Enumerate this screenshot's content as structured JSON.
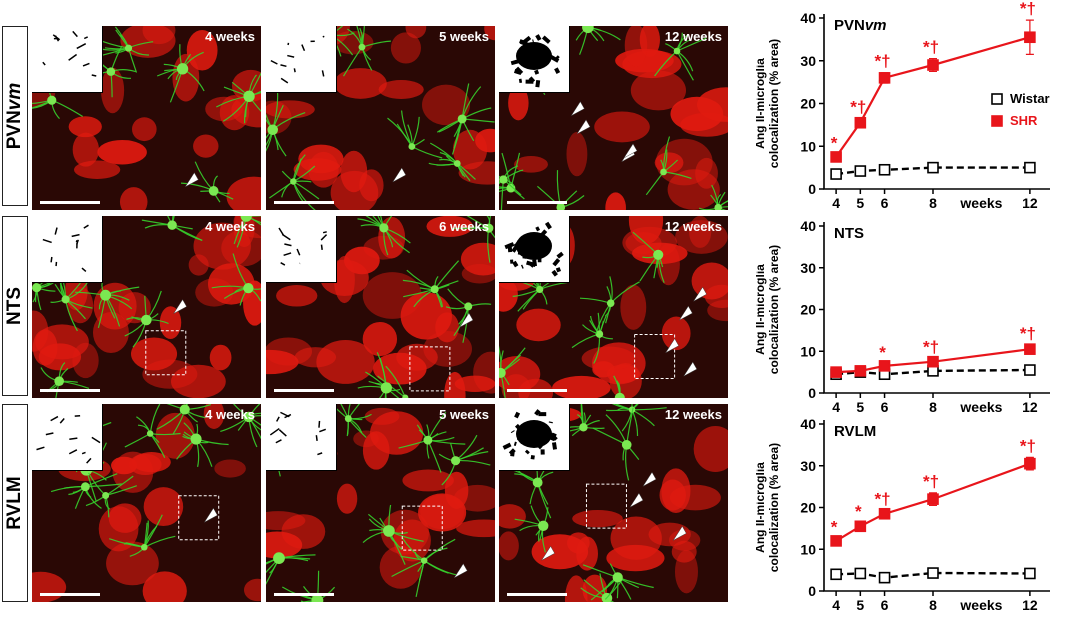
{
  "rows": [
    {
      "label_html": "PVN<i>vm</i>",
      "label": "PVNvm",
      "panels": [
        "4 weeks",
        "5 weeks",
        "12 weeks"
      ]
    },
    {
      "label": "NTS",
      "panels": [
        "4 weeks",
        "6 weeks",
        "12 weeks"
      ]
    },
    {
      "label": "RVLM",
      "panels": [
        "4 weeks",
        "5 weeks",
        "12 weeks"
      ]
    }
  ],
  "colors": {
    "shr": "#e8151b",
    "wistar": "#000000",
    "microglia": "#36d02c",
    "angii": "#e01a10"
  },
  "legend": {
    "wistar": "Wistar",
    "shr": "SHR"
  },
  "chart_data": [
    {
      "type": "line",
      "title": "PVNvm",
      "ylabel": "Ang II-microglia colocalization (% area)",
      "xlabel": "weeks",
      "x": [
        4,
        5,
        6,
        8,
        12
      ],
      "xticks": [
        "4",
        "5",
        "6",
        "8",
        "12"
      ],
      "ylim": [
        0,
        40
      ],
      "yticks": [
        0,
        10,
        20,
        30,
        40
      ],
      "series": [
        {
          "name": "Wistar",
          "values": [
            3.5,
            4.2,
            4.5,
            5.0,
            5.0
          ],
          "errors": [
            0.4,
            0.4,
            0.4,
            0.4,
            0.4
          ],
          "marker": "open-square",
          "line": "dashed"
        },
        {
          "name": "SHR",
          "values": [
            7.5,
            15.5,
            26.0,
            29.0,
            35.5
          ],
          "errors": [
            0.6,
            1.0,
            1.2,
            1.5,
            4.0
          ],
          "marker": "filled-square",
          "line": "solid"
        }
      ],
      "annotations": [
        "*",
        "*†",
        "*†",
        "*†",
        "*†"
      ],
      "legend_position": "right"
    },
    {
      "type": "line",
      "title": "NTS",
      "ylabel": "Ang II-microglia colocalization (% area)",
      "xlabel": "weeks",
      "x": [
        4,
        5,
        6,
        8,
        12
      ],
      "xticks": [
        "4",
        "5",
        "6",
        "8",
        "12"
      ],
      "ylim": [
        0,
        40
      ],
      "yticks": [
        0,
        10,
        20,
        30,
        40
      ],
      "series": [
        {
          "name": "Wistar",
          "values": [
            4.5,
            5.0,
            4.5,
            5.3,
            5.5
          ],
          "errors": [
            0.3,
            0.3,
            0.3,
            0.3,
            0.3
          ],
          "marker": "open-square",
          "line": "dashed"
        },
        {
          "name": "SHR",
          "values": [
            5.0,
            5.3,
            6.5,
            7.5,
            10.5
          ],
          "errors": [
            0.4,
            0.4,
            0.5,
            0.8,
            1.0
          ],
          "marker": "filled-square",
          "line": "solid"
        }
      ],
      "annotations": [
        "",
        "",
        "*",
        "*†",
        "*†"
      ]
    },
    {
      "type": "line",
      "title": "RVLM",
      "ylabel": "Ang II-microglia colocalization (% area)",
      "xlabel": "weeks",
      "x": [
        4,
        5,
        6,
        8,
        12
      ],
      "xticks": [
        "4",
        "5",
        "6",
        "8",
        "12"
      ],
      "ylim": [
        0,
        40
      ],
      "yticks": [
        0,
        10,
        20,
        30,
        40
      ],
      "series": [
        {
          "name": "Wistar",
          "values": [
            4.0,
            4.2,
            3.2,
            4.3,
            4.2
          ],
          "errors": [
            0.3,
            0.3,
            0.3,
            0.3,
            0.3
          ],
          "marker": "open-square",
          "line": "dashed"
        },
        {
          "name": "SHR",
          "values": [
            12.0,
            15.5,
            18.5,
            22.0,
            30.5
          ],
          "errors": [
            0.6,
            0.8,
            0.8,
            1.5,
            1.5
          ],
          "marker": "filled-square",
          "line": "solid"
        }
      ],
      "annotations": [
        "*",
        "*",
        "*†",
        "*†",
        "*†"
      ]
    }
  ]
}
